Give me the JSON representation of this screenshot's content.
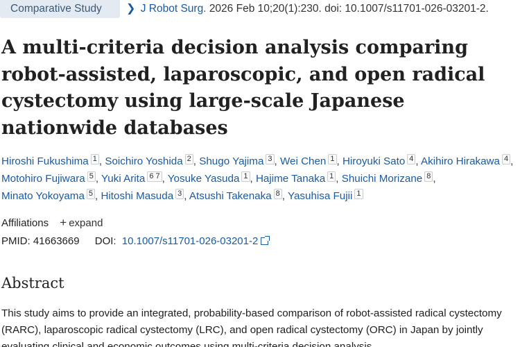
{
  "header": {
    "badge": "Comparative Study",
    "journal_name": "J Robot Surg.",
    "citation": "2026 Feb 10;20(1):230. doi: 10.1007/s11701-026-03201-2."
  },
  "article": {
    "title": "A multi-criteria decision analysis comparing robot-assisted, laparoscopic, and open radical cystectomy using large-scale Japanese nationwide databases"
  },
  "authors": [
    {
      "name": "Hiroshi Fukushima",
      "aff": "1"
    },
    {
      "name": "Soichiro Yoshida",
      "aff": "2"
    },
    {
      "name": "Shugo Yajima",
      "aff": "3"
    },
    {
      "name": "Wei Chen",
      "aff": "1"
    },
    {
      "name": "Hiroyuki Sato",
      "aff": "4"
    },
    {
      "name": "Akihiro Hirakawa",
      "aff": "4"
    },
    {
      "name": "Motohiro Fujiwara",
      "aff": "5"
    },
    {
      "name": "Yuki Arita",
      "aff": "6 7"
    },
    {
      "name": "Yosuke Yasuda",
      "aff": "1"
    },
    {
      "name": "Hajime Tanaka",
      "aff": "1"
    },
    {
      "name": "Shuichi Morizane",
      "aff": "8"
    },
    {
      "name": "Minato Yokoyama",
      "aff": "5"
    },
    {
      "name": "Hitoshi Masuda",
      "aff": "3"
    },
    {
      "name": "Atsushi Takenaka",
      "aff": "8"
    },
    {
      "name": "Yasuhisa Fujii",
      "aff": "1"
    }
  ],
  "affiliations": {
    "label": "Affiliations",
    "expand_label": "expand"
  },
  "ids": {
    "pmid_label": "PMID:",
    "pmid": "41663669",
    "doi_label": "DOI:",
    "doi": "10.1007/s11701-026-03201-2"
  },
  "abstract": {
    "heading": "Abstract",
    "text": "This study aims to provide an integrated, probability-based comparison of robot-assisted radical cystectomy (RARC), laparoscopic radical cystectomy (LRC), and open radical cystectomy (ORC) in Japan by jointly evaluating clinical and economic outcomes using multi-criteria decision analysis"
  },
  "icons": {
    "chevron": "chevron-right-icon",
    "plus": "plus-icon",
    "external": "external-link-icon"
  },
  "colors": {
    "link": "#1a5aa6",
    "badge_bg": "#e4eaf1"
  }
}
